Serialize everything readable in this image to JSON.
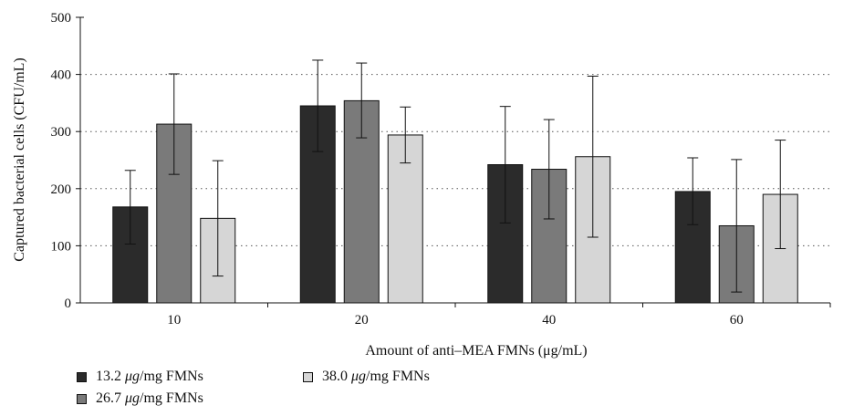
{
  "chart_data": {
    "type": "bar",
    "categories": [
      "10",
      "20",
      "40",
      "60"
    ],
    "series": [
      {
        "name": "13.2 µg/mg FMNs",
        "color": "#2b2b2b",
        "values": [
          168,
          345,
          242,
          195
        ],
        "error_low": [
          103,
          265,
          140,
          137
        ],
        "error_high": [
          232,
          425,
          344,
          254
        ]
      },
      {
        "name": "26.7 µg/mg FMNs",
        "color": "#7a7a7a",
        "values": [
          313,
          354,
          234,
          135
        ],
        "error_low": [
          225,
          289,
          147,
          19
        ],
        "error_high": [
          401,
          420,
          321,
          251
        ]
      },
      {
        "name": "38.0 µg/mg FMNs",
        "color": "#d6d6d6",
        "values": [
          148,
          294,
          256,
          190
        ],
        "error_low": [
          47,
          245,
          115,
          95
        ],
        "error_high": [
          249,
          343,
          397,
          285
        ]
      }
    ],
    "xlabel": "Amount of anti–MEA FMNs (μg/mL)",
    "ylabel": "Captured bacterial cells (CFU/mL)",
    "ylim": [
      0,
      500
    ],
    "yticks": [
      "0",
      "100",
      "200",
      "300",
      "400",
      "500"
    ],
    "grid": "horizontal dotted",
    "legend_position": "bottom-left"
  },
  "legend": {
    "items": [
      {
        "value": "13.2",
        "unit": "μg",
        "suffix": "/mg FMNs",
        "color": "#2b2b2b"
      },
      {
        "value": "26.7",
        "unit": "μg",
        "suffix": "/mg FMNs",
        "color": "#7a7a7a"
      },
      {
        "value": "38.0",
        "unit": "μg",
        "suffix": "/mg FMNs",
        "color": "#d6d6d6"
      }
    ]
  }
}
